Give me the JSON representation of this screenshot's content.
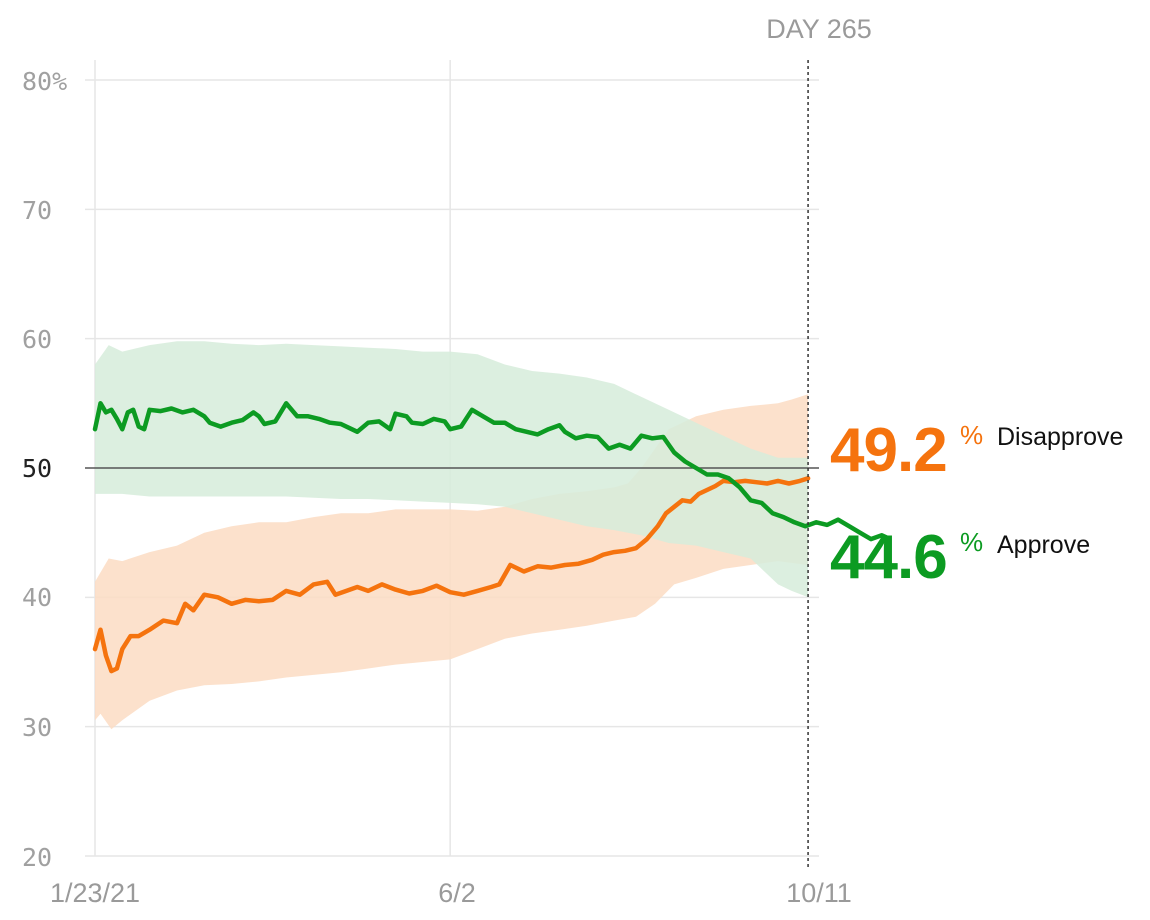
{
  "chart_data": {
    "type": "line",
    "title": "",
    "xlabel": "",
    "ylabel": "",
    "ylim": [
      20,
      80
    ],
    "day_range": [
      0,
      265
    ],
    "grid": true,
    "y_ticks": [
      {
        "value": 80,
        "label": "80%"
      },
      {
        "value": 70,
        "label": "70"
      },
      {
        "value": 60,
        "label": "60"
      },
      {
        "value": 50,
        "label": "50"
      },
      {
        "value": 40,
        "label": "40"
      },
      {
        "value": 30,
        "label": "30"
      },
      {
        "value": 20,
        "label": "20"
      }
    ],
    "x_ticks": [
      {
        "day": 0,
        "label": "1/23/21"
      },
      {
        "day": 130,
        "label": "6/2"
      },
      {
        "day": 261,
        "label": "10/11"
      }
    ],
    "reference_line": 50,
    "marker": {
      "day": 261,
      "label": "DAY 265"
    },
    "series": [
      {
        "name": "Disapprove",
        "color": "#f5730e",
        "band_color": "#fbdcc3",
        "final_value": "49.2",
        "percent_sign": "%",
        "points": [
          [
            0,
            36
          ],
          [
            2,
            37.5
          ],
          [
            4,
            35.5
          ],
          [
            6,
            34.3
          ],
          [
            8,
            34.5
          ],
          [
            10,
            36
          ],
          [
            13,
            37
          ],
          [
            16,
            37
          ],
          [
            20,
            37.5
          ],
          [
            25,
            38.2
          ],
          [
            30,
            38
          ],
          [
            33,
            39.5
          ],
          [
            36,
            39
          ],
          [
            40,
            40.2
          ],
          [
            45,
            40
          ],
          [
            50,
            39.5
          ],
          [
            55,
            39.8
          ],
          [
            60,
            39.7
          ],
          [
            65,
            39.8
          ],
          [
            70,
            40.5
          ],
          [
            75,
            40.2
          ],
          [
            80,
            41
          ],
          [
            85,
            41.2
          ],
          [
            88,
            40.2
          ],
          [
            92,
            40.5
          ],
          [
            96,
            40.8
          ],
          [
            100,
            40.5
          ],
          [
            105,
            41
          ],
          [
            110,
            40.6
          ],
          [
            115,
            40.3
          ],
          [
            120,
            40.5
          ],
          [
            125,
            40.9
          ],
          [
            130,
            40.4
          ],
          [
            135,
            40.2
          ],
          [
            140,
            40.5
          ],
          [
            145,
            40.8
          ],
          [
            148,
            41
          ],
          [
            152,
            42.5
          ],
          [
            157,
            42
          ],
          [
            162,
            42.4
          ],
          [
            167,
            42.3
          ],
          [
            172,
            42.5
          ],
          [
            177,
            42.6
          ],
          [
            182,
            42.9
          ],
          [
            186,
            43.3
          ],
          [
            190,
            43.5
          ],
          [
            194,
            43.6
          ],
          [
            198,
            43.8
          ],
          [
            202,
            44.5
          ],
          [
            206,
            45.5
          ],
          [
            209,
            46.5
          ],
          [
            212,
            47
          ],
          [
            215,
            47.5
          ],
          [
            218,
            47.4
          ],
          [
            221,
            48
          ],
          [
            224,
            48.3
          ],
          [
            227,
            48.6
          ],
          [
            230,
            49
          ],
          [
            234,
            48.9
          ],
          [
            238,
            49
          ],
          [
            242,
            48.9
          ],
          [
            246,
            48.8
          ],
          [
            250,
            49
          ],
          [
            254,
            48.8
          ],
          [
            258,
            49
          ],
          [
            261,
            49.2
          ]
        ],
        "band_upper": [
          [
            0,
            41.2
          ],
          [
            5,
            43
          ],
          [
            10,
            42.8
          ],
          [
            20,
            43.5
          ],
          [
            30,
            44
          ],
          [
            40,
            45
          ],
          [
            50,
            45.5
          ],
          [
            60,
            45.8
          ],
          [
            70,
            45.8
          ],
          [
            80,
            46.2
          ],
          [
            90,
            46.5
          ],
          [
            100,
            46.5
          ],
          [
            110,
            46.8
          ],
          [
            120,
            46.8
          ],
          [
            130,
            46.8
          ],
          [
            140,
            46.7
          ],
          [
            150,
            47
          ],
          [
            160,
            47.6
          ],
          [
            170,
            48
          ],
          [
            180,
            48.2
          ],
          [
            190,
            48.5
          ],
          [
            195,
            48.8
          ],
          [
            200,
            50
          ],
          [
            205,
            51.5
          ],
          [
            210,
            53
          ],
          [
            215,
            53.5
          ],
          [
            220,
            54
          ],
          [
            230,
            54.5
          ],
          [
            240,
            54.8
          ],
          [
            250,
            55
          ],
          [
            255,
            55.3
          ],
          [
            261,
            55.7
          ]
        ],
        "band_lower": [
          [
            261,
            42.5
          ],
          [
            250,
            42.8
          ],
          [
            240,
            42.5
          ],
          [
            230,
            42.2
          ],
          [
            220,
            41.5
          ],
          [
            212,
            41
          ],
          [
            205,
            39.5
          ],
          [
            198,
            38.5
          ],
          [
            190,
            38.2
          ],
          [
            180,
            37.8
          ],
          [
            170,
            37.5
          ],
          [
            160,
            37.2
          ],
          [
            150,
            36.8
          ],
          [
            140,
            36
          ],
          [
            130,
            35.2
          ],
          [
            120,
            35
          ],
          [
            110,
            34.8
          ],
          [
            100,
            34.5
          ],
          [
            90,
            34.2
          ],
          [
            80,
            34
          ],
          [
            70,
            33.8
          ],
          [
            60,
            33.5
          ],
          [
            50,
            33.3
          ],
          [
            40,
            33.2
          ],
          [
            30,
            32.8
          ],
          [
            20,
            32
          ],
          [
            10,
            30.5
          ],
          [
            6,
            29.8
          ],
          [
            2,
            31
          ],
          [
            0,
            30.5
          ]
        ]
      },
      {
        "name": "Approve",
        "color": "#0c9b22",
        "band_color": "#d6ecda",
        "final_value": "44.6",
        "percent_sign": "%",
        "points": [
          [
            0,
            53
          ],
          [
            2,
            55
          ],
          [
            4,
            54.3
          ],
          [
            6,
            54.5
          ],
          [
            8,
            53.8
          ],
          [
            10,
            53
          ],
          [
            12,
            54.3
          ],
          [
            14,
            54.5
          ],
          [
            16,
            53.2
          ],
          [
            18,
            53
          ],
          [
            20,
            54.5
          ],
          [
            24,
            54.4
          ],
          [
            28,
            54.6
          ],
          [
            32,
            54.3
          ],
          [
            36,
            54.5
          ],
          [
            40,
            54
          ],
          [
            42,
            53.5
          ],
          [
            46,
            53.2
          ],
          [
            50,
            53.5
          ],
          [
            54,
            53.7
          ],
          [
            58,
            54.3
          ],
          [
            60,
            54
          ],
          [
            62,
            53.4
          ],
          [
            66,
            53.6
          ],
          [
            70,
            55
          ],
          [
            74,
            54
          ],
          [
            78,
            54
          ],
          [
            82,
            53.8
          ],
          [
            86,
            53.5
          ],
          [
            90,
            53.4
          ],
          [
            94,
            53
          ],
          [
            96,
            52.8
          ],
          [
            100,
            53.5
          ],
          [
            104,
            53.6
          ],
          [
            108,
            53
          ],
          [
            110,
            54.2
          ],
          [
            114,
            54
          ],
          [
            116,
            53.5
          ],
          [
            120,
            53.4
          ],
          [
            124,
            53.8
          ],
          [
            128,
            53.6
          ],
          [
            130,
            53
          ],
          [
            134,
            53.2
          ],
          [
            138,
            54.5
          ],
          [
            142,
            54
          ],
          [
            146,
            53.5
          ],
          [
            150,
            53.5
          ],
          [
            154,
            53
          ],
          [
            158,
            52.8
          ],
          [
            162,
            52.6
          ],
          [
            166,
            53
          ],
          [
            170,
            53.3
          ],
          [
            172,
            52.8
          ],
          [
            176,
            52.3
          ],
          [
            180,
            52.5
          ],
          [
            184,
            52.4
          ],
          [
            188,
            51.5
          ],
          [
            192,
            51.8
          ],
          [
            196,
            51.5
          ],
          [
            200,
            52.5
          ],
          [
            204,
            52.3
          ],
          [
            208,
            52.4
          ],
          [
            212,
            51.2
          ],
          [
            216,
            50.5
          ],
          [
            220,
            50
          ],
          [
            224,
            49.5
          ],
          [
            228,
            49.5
          ],
          [
            232,
            49.2
          ],
          [
            236,
            48.5
          ],
          [
            240,
            47.5
          ],
          [
            244,
            47.3
          ],
          [
            248,
            46.5
          ],
          [
            252,
            46.2
          ],
          [
            256,
            45.8
          ],
          [
            260,
            45.5
          ],
          [
            264,
            45.8
          ],
          [
            268,
            45.6
          ],
          [
            272,
            46
          ],
          [
            276,
            45.5
          ],
          [
            280,
            45
          ],
          [
            284,
            44.5
          ],
          [
            288,
            44.8
          ],
          [
            290,
            44.6
          ]
        ],
        "band_upper": [
          [
            0,
            58
          ],
          [
            5,
            59.5
          ],
          [
            10,
            59
          ],
          [
            20,
            59.5
          ],
          [
            30,
            59.8
          ],
          [
            40,
            59.8
          ],
          [
            50,
            59.6
          ],
          [
            60,
            59.5
          ],
          [
            70,
            59.6
          ],
          [
            80,
            59.5
          ],
          [
            90,
            59.4
          ],
          [
            100,
            59.3
          ],
          [
            110,
            59.2
          ],
          [
            120,
            59
          ],
          [
            130,
            59
          ],
          [
            140,
            58.8
          ],
          [
            150,
            58
          ],
          [
            160,
            57.5
          ],
          [
            170,
            57.3
          ],
          [
            180,
            57
          ],
          [
            190,
            56.5
          ],
          [
            200,
            55.5
          ],
          [
            210,
            54.5
          ],
          [
            220,
            53.5
          ],
          [
            230,
            52.5
          ],
          [
            240,
            51.5
          ],
          [
            250,
            50.8
          ],
          [
            261,
            50.8
          ]
        ],
        "band_lower": [
          [
            261,
            40
          ],
          [
            255,
            40.5
          ],
          [
            250,
            41
          ],
          [
            245,
            42
          ],
          [
            240,
            43
          ],
          [
            230,
            43.5
          ],
          [
            220,
            44
          ],
          [
            210,
            44.2
          ],
          [
            200,
            44.8
          ],
          [
            190,
            45.2
          ],
          [
            180,
            45.5
          ],
          [
            170,
            46
          ],
          [
            160,
            46.5
          ],
          [
            150,
            47
          ],
          [
            140,
            47.2
          ],
          [
            130,
            47.3
          ],
          [
            120,
            47.4
          ],
          [
            110,
            47.5
          ],
          [
            100,
            47.6
          ],
          [
            90,
            47.6
          ],
          [
            80,
            47.7
          ],
          [
            70,
            47.8
          ],
          [
            60,
            47.8
          ],
          [
            50,
            47.8
          ],
          [
            40,
            47.8
          ],
          [
            30,
            47.8
          ],
          [
            20,
            47.8
          ],
          [
            10,
            48
          ],
          [
            0,
            48
          ]
        ]
      }
    ]
  }
}
